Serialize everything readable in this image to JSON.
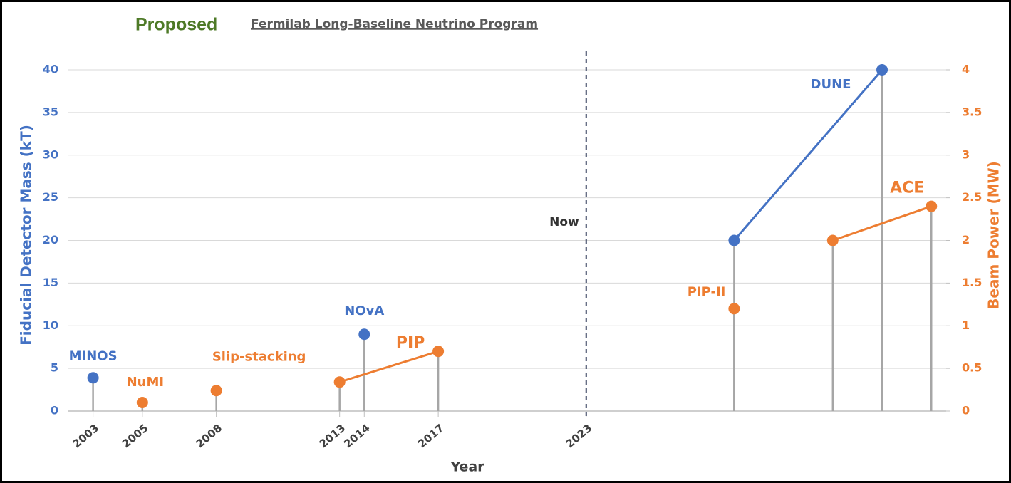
{
  "chart_data": {
    "type": "lollipop",
    "title": "Proposed",
    "subtitle": "Fermilab Long-Baseline Neutrino Program",
    "x_label": "Year",
    "y_label": "Fiducial Detector Mass (kT)",
    "y2_label": "Beam Power (MW)",
    "xlim": [
      2002,
      2037.6
    ],
    "xticks": [
      2003,
      2005,
      2008,
      2013,
      2014,
      2017,
      2023
    ],
    "ylim": [
      0,
      40
    ],
    "yticks": [
      0,
      5,
      10,
      15,
      20,
      25,
      30,
      35,
      40
    ],
    "y2lim": [
      0,
      4
    ],
    "y2ticks": [
      0,
      0.5,
      1,
      1.5,
      2,
      2.5,
      3,
      3.5,
      4
    ],
    "grid": true,
    "now": {
      "x": 2023,
      "label": "Now"
    },
    "series": [
      {
        "name": "Fiducial Detector Mass",
        "color": "#4472c4",
        "axis": "y",
        "x": [
          2003,
          2014,
          2029,
          2035
        ],
        "values": [
          3.9,
          9,
          20,
          40
        ],
        "labels": [
          "MINOS",
          "NOvA",
          null,
          "DUNE"
        ],
        "links": [
          [
            2,
            3
          ]
        ]
      },
      {
        "name": "Beam Power",
        "color": "#ed7d31",
        "axis": "y2",
        "x": [
          2005,
          2008,
          2013,
          2017,
          2029,
          2033,
          2037
        ],
        "values": [
          0.1,
          0.24,
          0.34,
          0.7,
          1.2,
          2.0,
          2.4
        ],
        "labels": [
          "NuMI",
          "Slip-stacking",
          null,
          "PIP",
          "PIP-II",
          null,
          "ACE"
        ],
        "links": [
          [
            2,
            3
          ],
          [
            5,
            6
          ]
        ]
      }
    ]
  }
}
